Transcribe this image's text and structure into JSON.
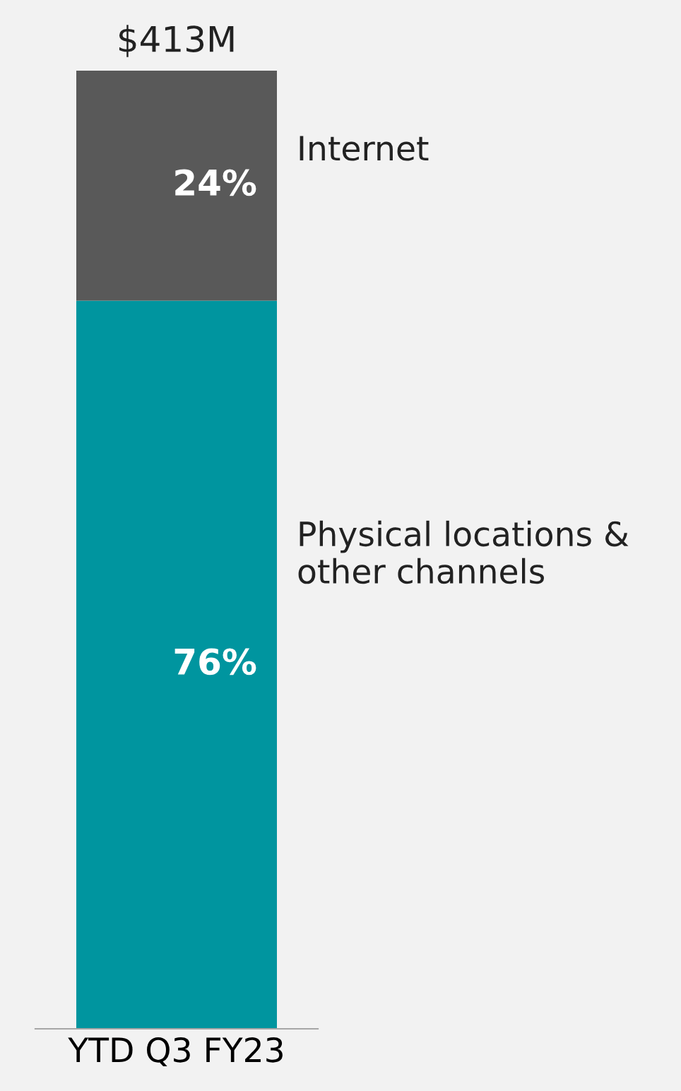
{
  "chart_data": {
    "type": "bar",
    "stacked": true,
    "categories": [
      "YTD Q3 FY23"
    ],
    "series": [
      {
        "name": "Physical locations & other channels",
        "color": "#00959f",
        "values": [
          76
        ],
        "value_labels": [
          "76%"
        ]
      },
      {
        "name": "Internet",
        "color": "#595959",
        "values": [
          24
        ],
        "value_labels": [
          "24%"
        ]
      }
    ],
    "annotations": [
      "$413M"
    ],
    "legend": false,
    "grid": false
  }
}
